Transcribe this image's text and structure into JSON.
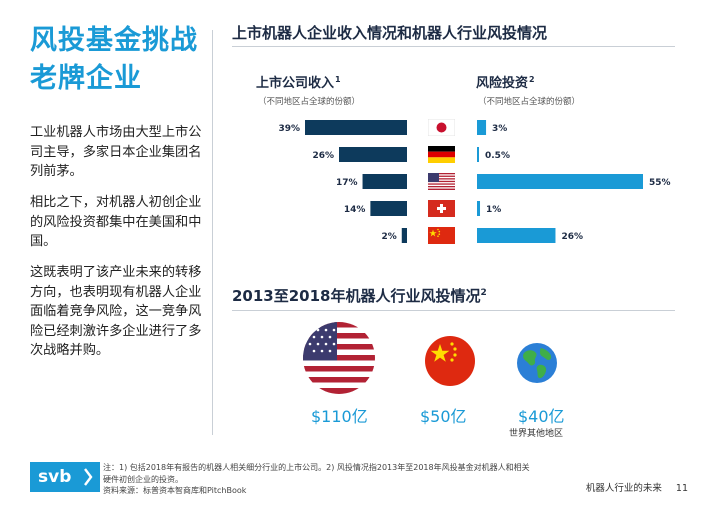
{
  "sidebar": {
    "title_line1": "风投基金挑战",
    "title_line2": "老牌企业",
    "para1": "工业机器人市场由大型上市公司主导，多家日本企业集团名列前茅。",
    "para2": "相比之下，对机器人初创企业的风险投资都集中在美国和中国。",
    "para3": "这既表明了该产业未来的转移方向，也表明现有机器人企业面临着竞争风险，这一竞争风险已经刺激许多企业进行了多次战略并购。"
  },
  "top_section": {
    "title": "上市机器人企业收入情况和机器人行业风投情况",
    "left_heading": "上市公司收入",
    "left_heading_sup": "1",
    "left_sub": "（不同地区占全球的份额）",
    "right_heading": "风险投资",
    "right_heading_sup": "2",
    "right_sub": "（不同地区占全球的份额）"
  },
  "chart_data": [
    {
      "type": "bar",
      "title": "上市公司收入",
      "categories": [
        "japan-flag",
        "germany-flag",
        "usa-flag",
        "switzerland-flag",
        "china-flag"
      ],
      "values": [
        39,
        26,
        17,
        14,
        2
      ],
      "labels": [
        "39%",
        "26%",
        "17%",
        "14%",
        "2%"
      ],
      "unit": "%",
      "direction": "left",
      "color": "#0d3a5c"
    },
    {
      "type": "bar",
      "title": "风险投资",
      "categories": [
        "japan-flag",
        "germany-flag",
        "usa-flag",
        "switzerland-flag",
        "china-flag"
      ],
      "values": [
        3,
        0.5,
        55,
        1,
        26
      ],
      "labels": [
        "3%",
        "0.5%",
        "55%",
        "1%",
        "26%"
      ],
      "unit": "%",
      "direction": "right",
      "color": "#1a9ad6"
    }
  ],
  "bottom_section": {
    "title": "2013至2018年机器人行业风投情况",
    "title_sup": "2",
    "items": [
      {
        "icon": "usa-flag-circle",
        "amount": "$110亿",
        "sub": ""
      },
      {
        "icon": "china-flag-circle",
        "amount": "$50亿",
        "sub": ""
      },
      {
        "icon": "globe-icon",
        "amount": "$40亿",
        "sub": "世界其他地区"
      }
    ]
  },
  "footer": {
    "logo_text": "svb",
    "note_line1": "注：1) 包括2018年有报告的机器人相关细分行业的上市公司。2) 风投情况指2013年至2018年风投基金对机器人和相关",
    "note_line2": "硬件初创企业的投资。",
    "note_line3": "资料来源：标普资本智商库和PitchBook",
    "page_label": "机器人行业的未来",
    "page_number": "11"
  },
  "colors": {
    "accent": "#1a9ad6",
    "navy": "#0d3a5c"
  }
}
